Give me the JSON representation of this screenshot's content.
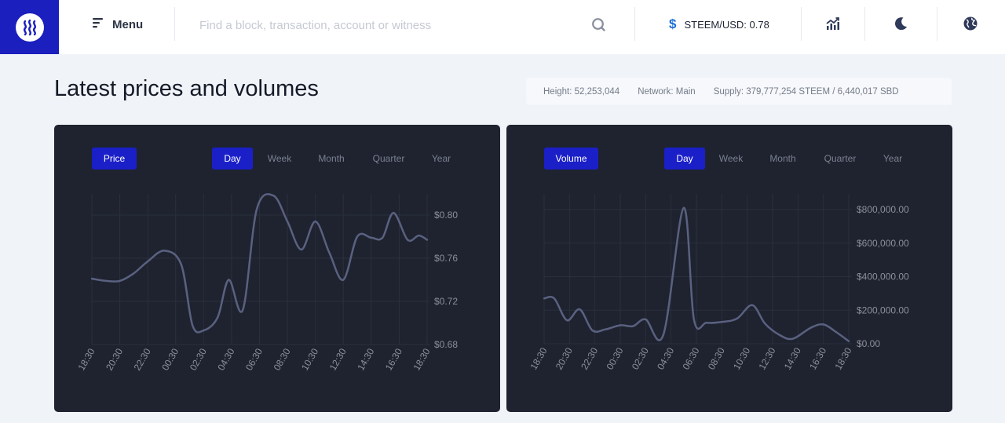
{
  "header": {
    "menu_label": "Menu",
    "search_placeholder": "Find a block, transaction, account or witness",
    "price_label": "STEEM/USD: 0.78",
    "icons": [
      "steem-logo-icon",
      "menu-icon",
      "search-icon",
      "dollar-icon",
      "chart-icon",
      "moon-icon",
      "globe-icon"
    ]
  },
  "page": {
    "title": "Latest prices and volumes",
    "height": "Height: 52,253,044",
    "network": "Network: Main",
    "supply": "Supply: 379,777,254 STEEM / 6,440,017 SBD"
  },
  "colors": {
    "brand": "#1a1fbd",
    "card_bg": "#1f232f",
    "line": "#5a6180",
    "accent_pill": "#1a1fc8"
  },
  "price_card": {
    "metric_label": "Price",
    "tabs": [
      "Day",
      "Week",
      "Month",
      "Quarter",
      "Year"
    ],
    "active_tab": "Day"
  },
  "volume_card": {
    "metric_label": "Volume",
    "tabs": [
      "Day",
      "Week",
      "Month",
      "Quarter",
      "Year"
    ],
    "active_tab": "Day"
  },
  "chart_data": [
    {
      "type": "line",
      "title": "",
      "xlabel": "",
      "ylabel": "",
      "x": [
        "18:30",
        "20:30",
        "22:30",
        "00:30",
        "02:30",
        "04:30",
        "06:30",
        "08:30",
        "10:30",
        "12:30",
        "14:30",
        "16:30",
        "18:30"
      ],
      "y_ticks": [
        "$0.80",
        "$0.76",
        "$0.72",
        "$0.68"
      ],
      "ylim": [
        0.68,
        0.8
      ],
      "grid": true,
      "points": [
        [
          0,
          0.741
        ],
        [
          0.5,
          0.739
        ],
        [
          1,
          0.739
        ],
        [
          1.5,
          0.746
        ],
        [
          2,
          0.757
        ],
        [
          2.6,
          0.767
        ],
        [
          3.2,
          0.754
        ],
        [
          3.6,
          0.698
        ],
        [
          4,
          0.693
        ],
        [
          4.5,
          0.705
        ],
        [
          4.9,
          0.74
        ],
        [
          5.4,
          0.712
        ],
        [
          5.9,
          0.805
        ],
        [
          6.5,
          0.818
        ],
        [
          7,
          0.794
        ],
        [
          7.5,
          0.768
        ],
        [
          8,
          0.794
        ],
        [
          8.5,
          0.765
        ],
        [
          9,
          0.74
        ],
        [
          9.5,
          0.78
        ],
        [
          10,
          0.779
        ],
        [
          10.4,
          0.779
        ],
        [
          10.8,
          0.802
        ],
        [
          11.3,
          0.777
        ],
        [
          11.7,
          0.781
        ],
        [
          12,
          0.777
        ]
      ]
    },
    {
      "type": "line",
      "title": "",
      "xlabel": "",
      "ylabel": "",
      "x": [
        "18:30",
        "20:30",
        "22:30",
        "00:30",
        "02:30",
        "04:30",
        "06:30",
        "08:30",
        "10:30",
        "12:30",
        "14:30",
        "16:30",
        "18:30"
      ],
      "y_ticks": [
        "$800,000.00",
        "$600,000.00",
        "$400,000.00",
        "$200,000.00",
        "$0.00"
      ],
      "ylim": [
        0,
        800000
      ],
      "grid": true,
      "points": [
        [
          0,
          270000
        ],
        [
          0.4,
          270000
        ],
        [
          0.9,
          140000
        ],
        [
          1.4,
          205000
        ],
        [
          1.9,
          80000
        ],
        [
          2.4,
          85000
        ],
        [
          3,
          110000
        ],
        [
          3.5,
          105000
        ],
        [
          4,
          145000
        ],
        [
          4.7,
          55000
        ],
        [
          5.5,
          810000
        ],
        [
          5.9,
          145000
        ],
        [
          6.4,
          125000
        ],
        [
          7,
          130000
        ],
        [
          7.6,
          150000
        ],
        [
          8.2,
          230000
        ],
        [
          8.7,
          120000
        ],
        [
          9.3,
          50000
        ],
        [
          9.8,
          30000
        ],
        [
          10.5,
          95000
        ],
        [
          11,
          115000
        ],
        [
          11.5,
          70000
        ],
        [
          12,
          15000
        ]
      ]
    }
  ]
}
